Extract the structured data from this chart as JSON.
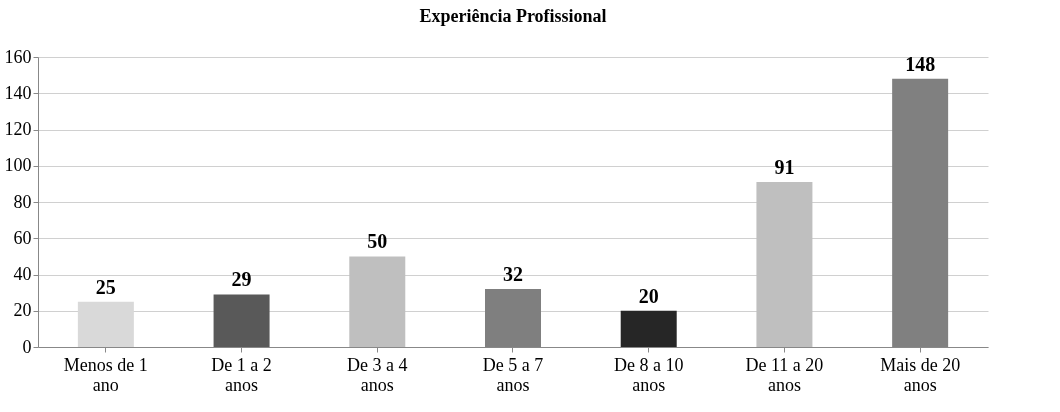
{
  "chart_data": {
    "type": "bar",
    "title": "Experiência Profissional",
    "categories": [
      "Menos de 1 ano",
      "De 1 a 2 anos",
      "De 3 a 4 anos",
      "De 5 a 7 anos",
      "De 8 a 10 anos",
      "De 11 a 20 anos",
      "Mais de 20 anos"
    ],
    "values": [
      25,
      29,
      50,
      32,
      20,
      91,
      148
    ],
    "colors": [
      "#d9d9d9",
      "#595959",
      "#bfbfbf",
      "#7f7f7f",
      "#262626",
      "#bfbfbf",
      "#808080"
    ],
    "ylim": [
      0,
      160
    ],
    "yticks": [
      0,
      20,
      40,
      60,
      80,
      100,
      120,
      140,
      160
    ],
    "grid": "y",
    "data_labels": true
  }
}
